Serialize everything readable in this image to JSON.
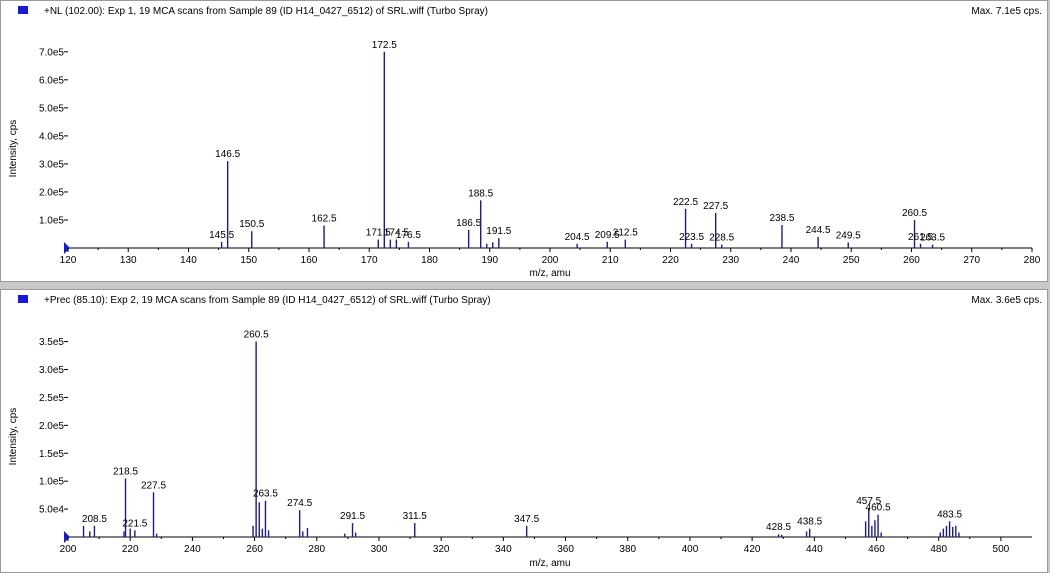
{
  "panels": [
    {
      "title": "+NL (102.00): Exp 1, 19 MCA scans from Sample 89 (ID H14_0427_6512) of SRL.wiff (Turbo Spray)",
      "max": "Max. 7.1e5 cps.",
      "ylabel": "Intensity, cps",
      "xlabel": "m/z, amu",
      "color": "#1c1c8c"
    },
    {
      "title": "+Prec (85.10): Exp 2, 19 MCA scans from Sample 89 (ID H14_0427_6512) of SRL.wiff (Turbo Spray)",
      "max": "Max. 3.6e5 cps.",
      "ylabel": "Intensity, cps",
      "xlabel": "m/z, amu",
      "color": "#1c1c8c"
    }
  ],
  "chart_data": [
    {
      "type": "bar",
      "title": "+NL (102.00): Exp 1, 19 MCA scans from Sample 89 (ID H14_0427_6512) of SRL.wiff (Turbo Spray)",
      "xlabel": "m/z, amu",
      "ylabel": "Intensity, cps",
      "xlim": [
        120,
        280
      ],
      "ylim": [
        0,
        710000.0
      ],
      "xticks": [
        "120",
        "130",
        "140",
        "150",
        "160",
        "170",
        "180",
        "190",
        "200",
        "210",
        "220",
        "230",
        "240",
        "250",
        "260",
        "270",
        "280"
      ],
      "yticks": [
        "1.0e5",
        "2.0e5",
        "3.0e5",
        "4.0e5",
        "5.0e5",
        "6.0e5",
        "7.0e5"
      ],
      "peaks": [
        {
          "mz": 145.5,
          "i": 22000,
          "label": "145.5"
        },
        {
          "mz": 146.5,
          "i": 310000,
          "label": "146.5"
        },
        {
          "mz": 150.5,
          "i": 60000,
          "label": "150.5"
        },
        {
          "mz": 162.5,
          "i": 80000,
          "label": "162.5"
        },
        {
          "mz": 171.5,
          "i": 30000,
          "label": "171.5"
        },
        {
          "mz": 172.5,
          "i": 700000,
          "label": "172.5"
        },
        {
          "mz": 173.5,
          "i": 30000,
          "label": ""
        },
        {
          "mz": 174.5,
          "i": 30000,
          "label": "174.5"
        },
        {
          "mz": 176.5,
          "i": 22000,
          "label": "176.5"
        },
        {
          "mz": 186.5,
          "i": 65000,
          "label": "186.5"
        },
        {
          "mz": 188.5,
          "i": 170000,
          "label": "188.5"
        },
        {
          "mz": 189.5,
          "i": 15000,
          "label": ""
        },
        {
          "mz": 190.5,
          "i": 20000,
          "label": ""
        },
        {
          "mz": 191.5,
          "i": 35000,
          "label": "191.5"
        },
        {
          "mz": 204.5,
          "i": 15000,
          "label": "204.5"
        },
        {
          "mz": 209.5,
          "i": 22000,
          "label": "209.5"
        },
        {
          "mz": 212.5,
          "i": 30000,
          "label": "212.5"
        },
        {
          "mz": 222.5,
          "i": 140000,
          "label": "222.5"
        },
        {
          "mz": 223.5,
          "i": 15000,
          "label": "223.5"
        },
        {
          "mz": 227.5,
          "i": 125000,
          "label": "227.5"
        },
        {
          "mz": 228.5,
          "i": 12000,
          "label": "228.5"
        },
        {
          "mz": 238.5,
          "i": 82000,
          "label": "238.5"
        },
        {
          "mz": 244.5,
          "i": 40000,
          "label": "244.5"
        },
        {
          "mz": 249.5,
          "i": 20000,
          "label": "249.5"
        },
        {
          "mz": 260.5,
          "i": 100000,
          "label": "260.5"
        },
        {
          "mz": 261.5,
          "i": 15000,
          "label": "261.5"
        },
        {
          "mz": 263.5,
          "i": 12000,
          "label": "263.5"
        }
      ]
    },
    {
      "type": "bar",
      "title": "+Prec (85.10): Exp 2, 19 MCA scans from Sample 89 (ID H14_0427_6512) of SRL.wiff (Turbo Spray)",
      "xlabel": "m/z, amu",
      "ylabel": "Intensity, cps",
      "xlim": [
        200,
        510
      ],
      "ylim": [
        0,
        360000.0
      ],
      "xticks": [
        "200",
        "220",
        "240",
        "260",
        "280",
        "300",
        "320",
        "340",
        "360",
        "380",
        "400",
        "420",
        "440",
        "460",
        "480",
        "500"
      ],
      "yticks": [
        "5.0e4",
        "1.0e5",
        "1.5e5",
        "2.0e5",
        "2.5e5",
        "3.0e5",
        "3.5e5"
      ],
      "peaks": [
        {
          "mz": 205.0,
          "i": 20000,
          "label": ""
        },
        {
          "mz": 207.0,
          "i": 10000,
          "label": ""
        },
        {
          "mz": 208.5,
          "i": 20000,
          "label": "208.5"
        },
        {
          "mz": 218.0,
          "i": 10000,
          "label": ""
        },
        {
          "mz": 218.5,
          "i": 105000,
          "label": "218.5"
        },
        {
          "mz": 220.0,
          "i": 15000,
          "label": ""
        },
        {
          "mz": 221.5,
          "i": 12000,
          "label": "221.5"
        },
        {
          "mz": 227.5,
          "i": 80000,
          "label": "227.5"
        },
        {
          "mz": 228.5,
          "i": 6000,
          "label": ""
        },
        {
          "mz": 259.5,
          "i": 20000,
          "label": ""
        },
        {
          "mz": 260.5,
          "i": 350000,
          "label": "260.5"
        },
        {
          "mz": 261.5,
          "i": 62000,
          "label": ""
        },
        {
          "mz": 262.5,
          "i": 15000,
          "label": ""
        },
        {
          "mz": 263.5,
          "i": 65000,
          "label": "263.5"
        },
        {
          "mz": 264.5,
          "i": 12000,
          "label": ""
        },
        {
          "mz": 274.5,
          "i": 48000,
          "label": "274.5"
        },
        {
          "mz": 275.5,
          "i": 10000,
          "label": ""
        },
        {
          "mz": 277.0,
          "i": 16000,
          "label": ""
        },
        {
          "mz": 289.0,
          "i": 6000,
          "label": ""
        },
        {
          "mz": 291.5,
          "i": 25000,
          "label": "291.5"
        },
        {
          "mz": 292.5,
          "i": 8000,
          "label": ""
        },
        {
          "mz": 311.5,
          "i": 25000,
          "label": "311.5"
        },
        {
          "mz": 347.5,
          "i": 20000,
          "label": "347.5"
        },
        {
          "mz": 428.5,
          "i": 5000,
          "label": "428.5"
        },
        {
          "mz": 429.5,
          "i": 4000,
          "label": ""
        },
        {
          "mz": 437.5,
          "i": 10000,
          "label": ""
        },
        {
          "mz": 438.5,
          "i": 15000,
          "label": "438.5"
        },
        {
          "mz": 456.5,
          "i": 28000,
          "label": ""
        },
        {
          "mz": 457.5,
          "i": 52000,
          "label": "457.5"
        },
        {
          "mz": 458.5,
          "i": 20000,
          "label": ""
        },
        {
          "mz": 459.5,
          "i": 30000,
          "label": ""
        },
        {
          "mz": 460.5,
          "i": 40000,
          "label": "460.5"
        },
        {
          "mz": 461.5,
          "i": 8000,
          "label": ""
        },
        {
          "mz": 480.5,
          "i": 8000,
          "label": ""
        },
        {
          "mz": 481.5,
          "i": 15000,
          "label": ""
        },
        {
          "mz": 482.5,
          "i": 20000,
          "label": ""
        },
        {
          "mz": 483.5,
          "i": 28000,
          "label": "483.5"
        },
        {
          "mz": 484.5,
          "i": 18000,
          "label": ""
        },
        {
          "mz": 485.5,
          "i": 20000,
          "label": ""
        },
        {
          "mz": 486.5,
          "i": 8000,
          "label": ""
        }
      ]
    }
  ]
}
